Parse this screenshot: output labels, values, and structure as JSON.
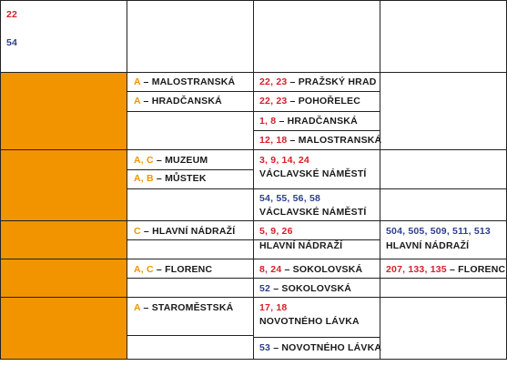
{
  "colors": {
    "red": "#d6202a",
    "blue": "#2d3f8f",
    "orange": "#f29400",
    "line": "#222222"
  },
  "header": {
    "tram_line": "22",
    "bus_line": "54"
  },
  "rows": [
    {
      "metro": [
        {
          "lines": "A",
          "name": "MALOSTRANSKÁ"
        },
        {
          "lines": "A",
          "name": "HRADČANSKÁ"
        }
      ],
      "tram": [
        {
          "lines": "22, 23",
          "name": "PRAŽSKÝ HRAD"
        },
        {
          "lines": "22, 23",
          "name": "POHOŘELEC"
        },
        {
          "lines": "1, 8",
          "name": "HRADČANSKÁ"
        },
        {
          "lines": "12, 18",
          "name": "MALOSTRANSKÁ"
        }
      ]
    },
    {
      "metro": [
        {
          "lines": "A, C",
          "name": "MUZEUM"
        },
        {
          "lines": "A, B",
          "name": "MŮSTEK"
        }
      ],
      "tram": [
        {
          "lines": "3, 9, 14, 24",
          "name": "VÁCLAVSKÉ NÁMĚSTÍ"
        }
      ],
      "bus": [
        {
          "lines": "54, 55, 56, 58",
          "name": "VÁCLAVSKÉ NÁMĚSTÍ"
        }
      ]
    },
    {
      "metro": [
        {
          "lines": "C",
          "name": "HLAVNÍ NÁDRAŽÍ"
        }
      ],
      "tram": [
        {
          "lines": "5, 9, 26",
          "name": "HLAVNÍ NÁDRAŽÍ"
        }
      ],
      "regional_bus": [
        {
          "lines": "504, 505, 509, 511, 513",
          "name": "HLAVNÍ NÁDRAŽÍ"
        }
      ]
    },
    {
      "metro": [
        {
          "lines": "A, C",
          "name": "FLORENC"
        }
      ],
      "tram": [
        {
          "lines": "8, 24",
          "name": "SOKOLOVSKÁ"
        }
      ],
      "bus": [
        {
          "lines": "52",
          "name": "SOKOLOVSKÁ"
        }
      ],
      "regional_bus": [
        {
          "lines": "207, 133, 135",
          "name": "FLORENC"
        }
      ]
    },
    {
      "metro": [
        {
          "lines": "A",
          "name": "STAROMĚSTSKÁ"
        }
      ],
      "tram": [
        {
          "lines": "17, 18",
          "name": "NOVOTNÉHO LÁVKA"
        }
      ],
      "bus": [
        {
          "lines": "53",
          "name": "NOVOTNÉHO LÁVKA"
        }
      ]
    }
  ],
  "sep": " – "
}
